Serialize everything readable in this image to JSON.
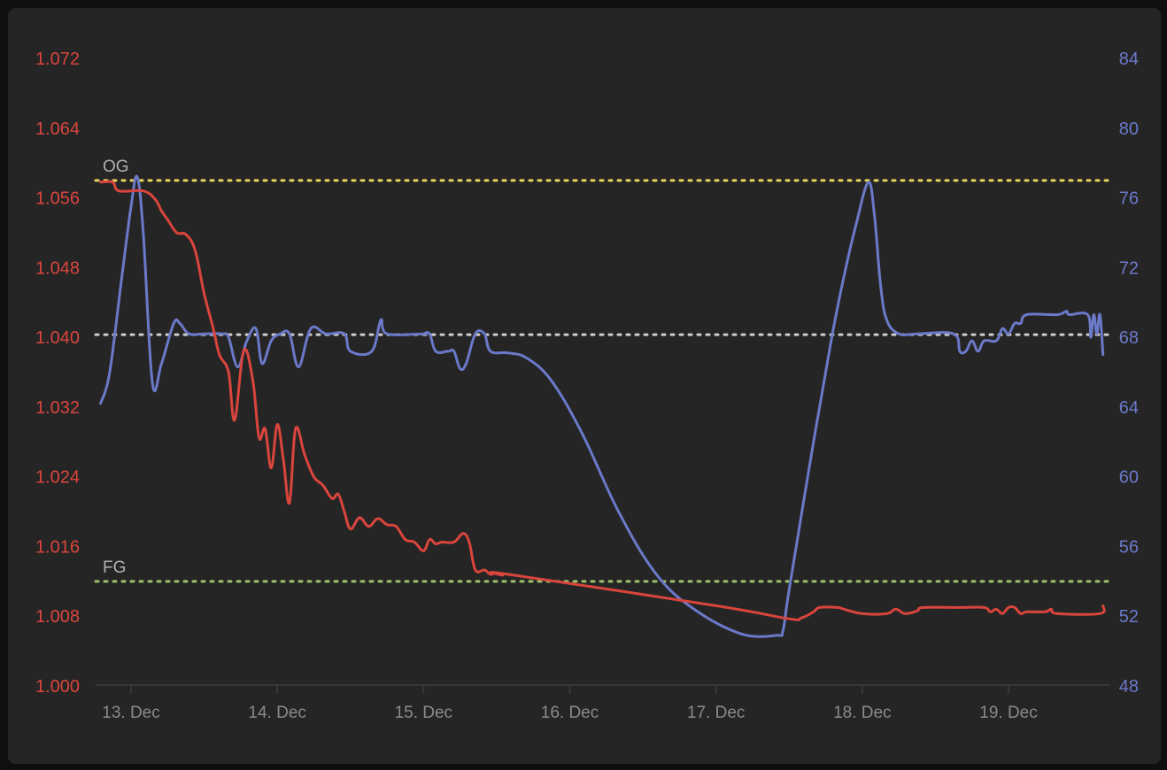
{
  "chart_data": {
    "type": "line",
    "title": "",
    "colors": {
      "gravity": "#d9453d",
      "temperature": "#6b79c9",
      "og_line": "#e9d35a",
      "fg_line": "#9bc16a",
      "mid_line": "#cfcfcf",
      "axis_text_x": "#8a8a8a",
      "ref_label": "#b0b0b0"
    },
    "x_axis": {
      "start": "2023-12-12T19:00",
      "end": "2023-12-19T16:00",
      "ticks": [
        {
          "t": "2023-12-13T00:00",
          "label": "13. Dec"
        },
        {
          "t": "2023-12-14T00:00",
          "label": "14. Dec"
        },
        {
          "t": "2023-12-15T00:00",
          "label": "15. Dec"
        },
        {
          "t": "2023-12-16T00:00",
          "label": "16. Dec"
        },
        {
          "t": "2023-12-17T00:00",
          "label": "17. Dec"
        },
        {
          "t": "2023-12-18T00:00",
          "label": "18. Dec"
        },
        {
          "t": "2023-12-19T00:00",
          "label": "19. Dec"
        }
      ]
    },
    "y_left": {
      "min": 1.0,
      "max": 1.072,
      "ticks": [
        "1.000",
        "1.008",
        "1.016",
        "1.024",
        "1.032",
        "1.040",
        "1.048",
        "1.056",
        "1.064",
        "1.072"
      ]
    },
    "y_right": {
      "min": 48,
      "max": 84,
      "ticks": [
        "48",
        "52",
        "56",
        "60",
        "64",
        "68",
        "72",
        "76",
        "80",
        "84"
      ]
    },
    "reference_lines": [
      {
        "label": "OG",
        "value": 1.058,
        "color_key": "og_line"
      },
      {
        "label": "",
        "value": 1.0403,
        "color_key": "mid_line"
      },
      {
        "label": "FG",
        "value": 1.012,
        "color_key": "fg_line"
      }
    ],
    "series": [
      {
        "axis": "left",
        "color_key": "gravity",
        "points": [
          [
            "2023-12-12T19:00",
            1.0578
          ],
          [
            "2023-12-12T21:00",
            1.0578
          ],
          [
            "2023-12-12T22:00",
            1.0568
          ],
          [
            "2023-12-13T02:00",
            1.0568
          ],
          [
            "2023-12-13T04:00",
            1.0558
          ],
          [
            "2023-12-13T05:00",
            1.0545
          ],
          [
            "2023-12-13T06:00",
            1.0535
          ],
          [
            "2023-12-13T07:30",
            1.052
          ],
          [
            "2023-12-13T09:00",
            1.0518
          ],
          [
            "2023-12-13T10:30",
            1.05
          ],
          [
            "2023-12-13T12:00",
            1.045
          ],
          [
            "2023-12-13T13:30",
            1.041
          ],
          [
            "2023-12-13T14:30",
            1.038
          ],
          [
            "2023-12-13T16:00",
            1.036
          ],
          [
            "2023-12-13T17:00",
            1.0305
          ],
          [
            "2023-12-13T18:30",
            1.0385
          ],
          [
            "2023-12-13T20:00",
            1.035
          ],
          [
            "2023-12-13T21:00",
            1.0285
          ],
          [
            "2023-12-13T22:00",
            1.0295
          ],
          [
            "2023-12-13T23:00",
            1.025
          ],
          [
            "2023-12-14T00:00",
            1.03
          ],
          [
            "2023-12-14T01:00",
            1.026
          ],
          [
            "2023-12-14T02:00",
            1.021
          ],
          [
            "2023-12-14T03:00",
            1.0295
          ],
          [
            "2023-12-14T04:30",
            1.0265
          ],
          [
            "2023-12-14T06:00",
            1.024
          ],
          [
            "2023-12-14T07:30",
            1.023
          ],
          [
            "2023-12-14T09:00",
            1.0215
          ],
          [
            "2023-12-14T10:00",
            1.022
          ],
          [
            "2023-12-14T11:00",
            1.02
          ],
          [
            "2023-12-14T12:00",
            1.018
          ],
          [
            "2023-12-14T13:30",
            1.0193
          ],
          [
            "2023-12-14T15:00",
            1.0183
          ],
          [
            "2023-12-14T16:30",
            1.0192
          ],
          [
            "2023-12-14T18:00",
            1.0185
          ],
          [
            "2023-12-14T19:30",
            1.0183
          ],
          [
            "2023-12-14T21:00",
            1.0168
          ],
          [
            "2023-12-14T22:30",
            1.0165
          ],
          [
            "2023-12-15T00:00",
            1.0155
          ],
          [
            "2023-12-15T01:00",
            1.0168
          ],
          [
            "2023-12-15T02:00",
            1.0163
          ],
          [
            "2023-12-15T03:00",
            1.0165
          ],
          [
            "2023-12-15T05:00",
            1.0165
          ],
          [
            "2023-12-15T06:30",
            1.0175
          ],
          [
            "2023-12-15T07:30",
            1.0165
          ],
          [
            "2023-12-15T08:30",
            1.0133
          ],
          [
            "2023-12-15T10:00",
            1.0133
          ],
          [
            "2023-12-15T11:00",
            1.0128
          ],
          [
            "2023-12-15T12:00",
            1.013
          ],
          [
            "2023-12-15T13:00",
            1.0127
          ],
          [
            "2023-12-15T14:00",
            1.0128
          ],
          [
            "2023-12-17T00:00",
            1.0092
          ],
          [
            "2023-12-17T12:00",
            1.0077
          ],
          [
            "2023-12-17T14:00",
            1.0078
          ],
          [
            "2023-12-17T16:00",
            1.0085
          ],
          [
            "2023-12-17T17:00",
            1.009
          ],
          [
            "2023-12-17T20:00",
            1.009
          ],
          [
            "2023-12-17T21:00",
            1.0088
          ],
          [
            "2023-12-18T00:00",
            1.0083
          ],
          [
            "2023-12-18T04:00",
            1.0083
          ],
          [
            "2023-12-18T05:30",
            1.0088
          ],
          [
            "2023-12-18T07:00",
            1.0083
          ],
          [
            "2023-12-18T09:00",
            1.0086
          ],
          [
            "2023-12-18T10:00",
            1.009
          ],
          [
            "2023-12-18T16:00",
            1.009
          ],
          [
            "2023-12-18T20:00",
            1.009
          ],
          [
            "2023-12-18T21:00",
            1.0085
          ],
          [
            "2023-12-18T22:00",
            1.0088
          ],
          [
            "2023-12-18T23:00",
            1.0083
          ],
          [
            "2023-12-19T00:00",
            1.009
          ],
          [
            "2023-12-19T01:00",
            1.009
          ],
          [
            "2023-12-19T02:00",
            1.0083
          ],
          [
            "2023-12-19T03:00",
            1.0085
          ],
          [
            "2023-12-19T06:00",
            1.0085
          ],
          [
            "2023-12-19T07:00",
            1.0088
          ],
          [
            "2023-12-19T08:00",
            1.0083
          ],
          [
            "2023-12-19T15:00",
            1.0083
          ],
          [
            "2023-12-19T15:30",
            1.0092
          ]
        ]
      },
      {
        "axis": "right",
        "color_key": "temperature",
        "points": [
          [
            "2023-12-12T19:00",
            64.2
          ],
          [
            "2023-12-12T20:30",
            66.0
          ],
          [
            "2023-12-12T22:30",
            71.5
          ],
          [
            "2023-12-13T00:00",
            75.5
          ],
          [
            "2023-12-13T01:00",
            77.2
          ],
          [
            "2023-12-13T02:00",
            74.0
          ],
          [
            "2023-12-13T03:30",
            65.4
          ],
          [
            "2023-12-13T05:00",
            66.5
          ],
          [
            "2023-12-13T07:00",
            68.8
          ],
          [
            "2023-12-13T08:00",
            68.8
          ],
          [
            "2023-12-13T09:30",
            68.2
          ],
          [
            "2023-12-13T12:00",
            68.2
          ],
          [
            "2023-12-13T15:00",
            68.2
          ],
          [
            "2023-12-13T16:00",
            68.0
          ],
          [
            "2023-12-13T17:30",
            66.3
          ],
          [
            "2023-12-13T19:00",
            67.8
          ],
          [
            "2023-12-13T20:30",
            68.5
          ],
          [
            "2023-12-13T21:30",
            66.5
          ],
          [
            "2023-12-13T23:00",
            67.8
          ],
          [
            "2023-12-14T00:30",
            68.2
          ],
          [
            "2023-12-14T02:00",
            68.2
          ],
          [
            "2023-12-14T03:30",
            66.3
          ],
          [
            "2023-12-14T05:30",
            68.5
          ],
          [
            "2023-12-14T08:00",
            68.2
          ],
          [
            "2023-12-14T11:00",
            68.2
          ],
          [
            "2023-12-14T12:00",
            67.2
          ],
          [
            "2023-12-14T15:30",
            67.2
          ],
          [
            "2023-12-14T17:00",
            69.0
          ],
          [
            "2023-12-14T18:00",
            68.2
          ],
          [
            "2023-12-14T24:00",
            68.2
          ],
          [
            "2023-12-15T00:00",
            68.2
          ],
          [
            "2023-12-15T01:00",
            68.2
          ],
          [
            "2023-12-15T02:00",
            67.2
          ],
          [
            "2023-12-15T04:00",
            67.2
          ],
          [
            "2023-12-15T05:00",
            67.2
          ],
          [
            "2023-12-15T06:00",
            66.2
          ],
          [
            "2023-12-15T07:00",
            66.5
          ],
          [
            "2023-12-15T08:30",
            68.2
          ],
          [
            "2023-12-15T10:00",
            68.2
          ],
          [
            "2023-12-15T11:00",
            67.2
          ],
          [
            "2023-12-15T14:00",
            67.1
          ],
          [
            "2023-12-15T17:00",
            66.8
          ],
          [
            "2023-12-15T21:00",
            65.5
          ],
          [
            "2023-12-16T02:00",
            62.5
          ],
          [
            "2023-12-16T08:00",
            58.0
          ],
          [
            "2023-12-16T14:00",
            54.5
          ],
          [
            "2023-12-16T20:00",
            52.5
          ],
          [
            "2023-12-17T04:00",
            51.0
          ],
          [
            "2023-12-17T10:00",
            50.9
          ],
          [
            "2023-12-17T11:00",
            51.2
          ],
          [
            "2023-12-17T12:00",
            53.5
          ],
          [
            "2023-12-17T16:00",
            62.0
          ],
          [
            "2023-12-17T19:00",
            68.0
          ],
          [
            "2023-12-17T21:00",
            71.5
          ],
          [
            "2023-12-17T23:00",
            74.5
          ],
          [
            "2023-12-18T01:00",
            76.9
          ],
          [
            "2023-12-18T02:00",
            75.0
          ],
          [
            "2023-12-18T03:00",
            71.0
          ],
          [
            "2023-12-18T04:00",
            69.0
          ],
          [
            "2023-12-18T06:00",
            68.2
          ],
          [
            "2023-12-18T09:00",
            68.2
          ],
          [
            "2023-12-18T15:00",
            68.2
          ],
          [
            "2023-12-18T16:00",
            67.2
          ],
          [
            "2023-12-18T17:00",
            67.2
          ],
          [
            "2023-12-18T18:00",
            67.8
          ],
          [
            "2023-12-18T19:00",
            67.2
          ],
          [
            "2023-12-18T20:00",
            67.8
          ],
          [
            "2023-12-18T22:00",
            67.8
          ],
          [
            "2023-12-18T23:00",
            68.5
          ],
          [
            "2023-12-19T00:00",
            68.2
          ],
          [
            "2023-12-19T01:00",
            68.8
          ],
          [
            "2023-12-19T02:00",
            68.8
          ],
          [
            "2023-12-19T03:00",
            69.3
          ],
          [
            "2023-12-19T08:00",
            69.3
          ],
          [
            "2023-12-19T09:30",
            69.5
          ],
          [
            "2023-12-19T10:00",
            69.3
          ],
          [
            "2023-12-19T13:00",
            69.3
          ],
          [
            "2023-12-19T13:30",
            68.0
          ],
          [
            "2023-12-19T14:00",
            69.3
          ],
          [
            "2023-12-19T14:30",
            68.2
          ],
          [
            "2023-12-19T15:00",
            69.3
          ],
          [
            "2023-12-19T15:30",
            67.0
          ]
        ]
      }
    ]
  }
}
